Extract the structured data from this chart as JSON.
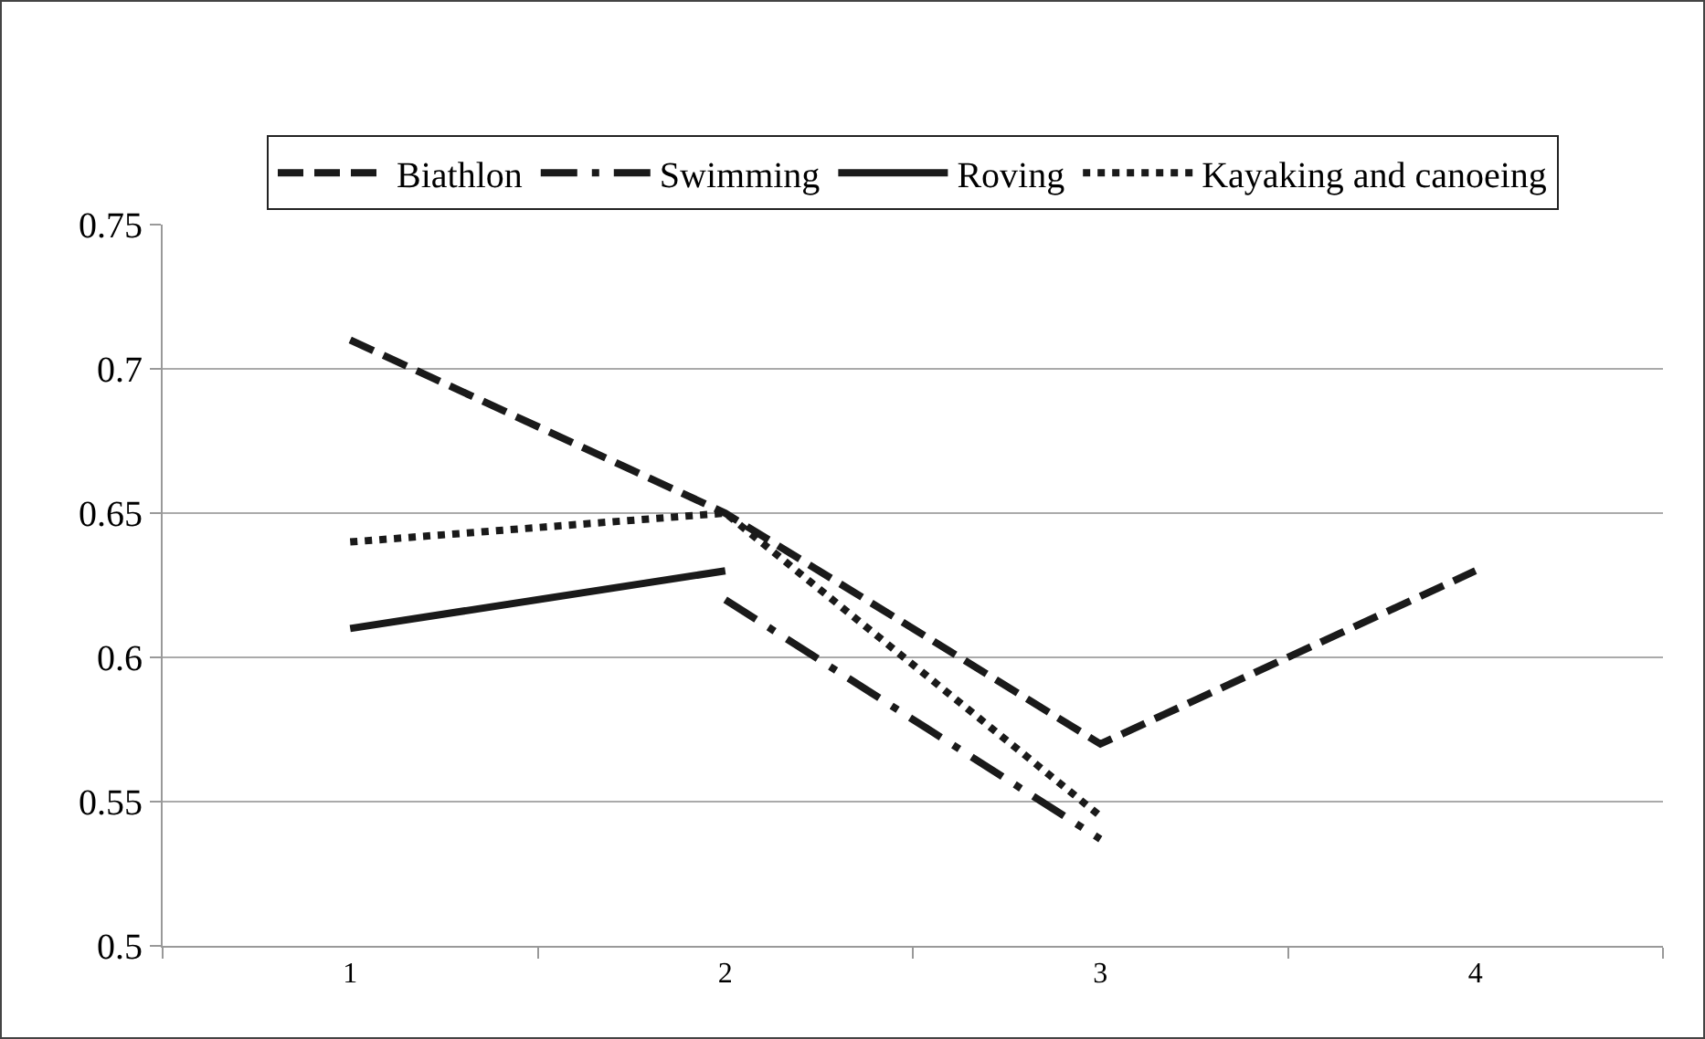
{
  "chart_data": {
    "type": "line",
    "categories": [
      "1",
      "2",
      "3",
      "4"
    ],
    "series": [
      {
        "name": "Biathlon",
        "color": "#1a1a1a",
        "line_style": "dashed",
        "values": [
          0.71,
          0.65,
          0.57,
          0.63
        ]
      },
      {
        "name": "Swimming",
        "color": "#1a1a1a",
        "line_style": "dashdot",
        "values": [
          null,
          0.62,
          0.537,
          null
        ]
      },
      {
        "name": "Roving",
        "color": "#1a1a1a",
        "line_style": "solid",
        "values": [
          0.61,
          0.63,
          null,
          null
        ]
      },
      {
        "name": "Kayaking and canoeing",
        "color": "#1a1a1a",
        "line_style": "dotted",
        "values": [
          0.64,
          0.65,
          0.545,
          null
        ]
      }
    ],
    "ylim": [
      0.5,
      0.75
    ],
    "yticks": [
      0.5,
      0.55,
      0.6,
      0.65,
      0.7,
      0.75
    ],
    "grid": "y",
    "legend": "top",
    "marker": "none"
  }
}
